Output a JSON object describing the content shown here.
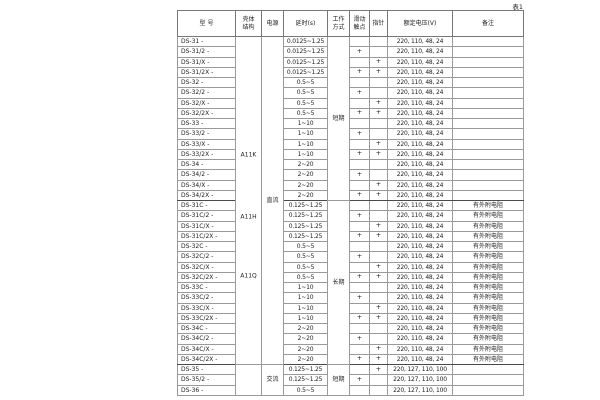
{
  "page": {
    "caption": "表1"
  },
  "table": {
    "headers": [
      "型 号",
      "壳体\n结构",
      "电源",
      "延时(s)",
      "工作\n方式",
      "滑动\n触点",
      "指针",
      "额定电压(V)",
      "备注"
    ],
    "shell_groups": [
      {
        "start": 1,
        "end": 32,
        "labels": [
          "A11K",
          "A11H",
          "A11Q"
        ]
      },
      {
        "start": 33,
        "end": 35,
        "labels": []
      }
    ],
    "power_groups": [
      {
        "start": 1,
        "end": 32,
        "label": "直流"
      },
      {
        "start": 33,
        "end": 35,
        "label": "交流"
      }
    ],
    "mode_groups": [
      {
        "start": 1,
        "end": 16,
        "label": "短期"
      },
      {
        "start": 17,
        "end": 32,
        "label": "长期"
      },
      {
        "start": 33,
        "end": 35,
        "label": "短期"
      }
    ],
    "rows": [
      {
        "model": "DS-31 -",
        "delay": "0.0125~1.25",
        "sliding_contact": "",
        "pointer": "",
        "voltage": "220, 110, 48, 24",
        "remark": ""
      },
      {
        "model": "DS-31/2 -",
        "delay": "0.0125~1.25",
        "sliding_contact": "+",
        "pointer": "",
        "voltage": "220, 110, 48, 24",
        "remark": ""
      },
      {
        "model": "DS-31/X -",
        "delay": "0.0125~1.25",
        "sliding_contact": "",
        "pointer": "+",
        "voltage": "220, 110, 48, 24",
        "remark": ""
      },
      {
        "model": "DS-31/2X -",
        "delay": "0.0125~1.25",
        "sliding_contact": "+",
        "pointer": "+",
        "voltage": "220, 110, 48, 24",
        "remark": ""
      },
      {
        "model": "DS-32 -",
        "delay": "0.5~5",
        "sliding_contact": "",
        "pointer": "",
        "voltage": "220, 110, 48, 24",
        "remark": ""
      },
      {
        "model": "DS-32/2 -",
        "delay": "0.5~5",
        "sliding_contact": "+",
        "pointer": "",
        "voltage": "220, 110, 48, 24",
        "remark": ""
      },
      {
        "model": "DS-32/X -",
        "delay": "0.5~5",
        "sliding_contact": "",
        "pointer": "+",
        "voltage": "220, 110, 48, 24",
        "remark": ""
      },
      {
        "model": "DS-32/2X -",
        "delay": "0.5~5",
        "sliding_contact": "+",
        "pointer": "+",
        "voltage": "220, 110, 48, 24",
        "remark": ""
      },
      {
        "model": "DS-33 -",
        "delay": "1~10",
        "sliding_contact": "",
        "pointer": "",
        "voltage": "220, 110, 48, 24",
        "remark": ""
      },
      {
        "model": "DS-33/2 -",
        "delay": "1~10",
        "sliding_contact": "+",
        "pointer": "",
        "voltage": "220, 110, 48, 24",
        "remark": ""
      },
      {
        "model": "DS-33/X -",
        "delay": "1~10",
        "sliding_contact": "",
        "pointer": "+",
        "voltage": "220, 110, 48, 24",
        "remark": ""
      },
      {
        "model": "DS-33/2X -",
        "delay": "1~10",
        "sliding_contact": "+",
        "pointer": "+",
        "voltage": "220, 110, 48, 24",
        "remark": ""
      },
      {
        "model": "DS-34 -",
        "delay": "2~20",
        "sliding_contact": "",
        "pointer": "",
        "voltage": "220, 110, 48, 24",
        "remark": ""
      },
      {
        "model": "DS-34/2 -",
        "delay": "2~20",
        "sliding_contact": "+",
        "pointer": "",
        "voltage": "220, 110, 48, 24",
        "remark": ""
      },
      {
        "model": "DS-34/X -",
        "delay": "2~20",
        "sliding_contact": "",
        "pointer": "+",
        "voltage": "220, 110, 48, 24",
        "remark": ""
      },
      {
        "model": "DS-34/2X -",
        "delay": "2~20",
        "sliding_contact": "+",
        "pointer": "+",
        "voltage": "220, 110, 48, 24",
        "remark": ""
      },
      {
        "model": "DS-31C -",
        "delay": "0.125~1.25",
        "sliding_contact": "",
        "pointer": "",
        "voltage": "220, 110, 48, 24",
        "remark": "有外附电阻"
      },
      {
        "model": "DS-31C/2 -",
        "delay": "0.125~1.25",
        "sliding_contact": "+",
        "pointer": "",
        "voltage": "220, 110, 48, 24",
        "remark": "有外附电阻"
      },
      {
        "model": "DS-31C/X -",
        "delay": "0.125~1.25",
        "sliding_contact": "",
        "pointer": "+",
        "voltage": "220, 110, 48, 24",
        "remark": "有外附电阻"
      },
      {
        "model": "DS-31C/2X -",
        "delay": "0.125~1.25",
        "sliding_contact": "+",
        "pointer": "+",
        "voltage": "220, 110, 48, 24",
        "remark": "有外附电阻"
      },
      {
        "model": "DS-32C -",
        "delay": "0.5~5",
        "sliding_contact": "",
        "pointer": "",
        "voltage": "220, 110, 48, 24",
        "remark": "有外附电阻"
      },
      {
        "model": "DS-32C/2 -",
        "delay": "0.5~5",
        "sliding_contact": "+",
        "pointer": "",
        "voltage": "220, 110, 48, 24",
        "remark": "有外附电阻"
      },
      {
        "model": "DS-32C/X -",
        "delay": "0.5~5",
        "sliding_contact": "",
        "pointer": "+",
        "voltage": "220, 110, 48, 24",
        "remark": "有外附电阻"
      },
      {
        "model": "DS-32C/2X -",
        "delay": "0.5~5",
        "sliding_contact": "+",
        "pointer": "+",
        "voltage": "220, 110, 48, 24",
        "remark": "有外附电阻"
      },
      {
        "model": "DS-33C -",
        "delay": "1~10",
        "sliding_contact": "",
        "pointer": "",
        "voltage": "220, 110, 48, 24",
        "remark": "有外附电阻"
      },
      {
        "model": "DS-33C/2 -",
        "delay": "1~10",
        "sliding_contact": "+",
        "pointer": "",
        "voltage": "220, 110, 48, 24",
        "remark": "有外附电阻"
      },
      {
        "model": "DS-33C/X -",
        "delay": "1~10",
        "sliding_contact": "",
        "pointer": "+",
        "voltage": "220, 110, 48, 24",
        "remark": "有外附电阻"
      },
      {
        "model": "DS-33C/2X -",
        "delay": "1~10",
        "sliding_contact": "+",
        "pointer": "+",
        "voltage": "220, 110, 48, 24",
        "remark": "有外附电阻"
      },
      {
        "model": "DS-34C -",
        "delay": "2~20",
        "sliding_contact": "",
        "pointer": "",
        "voltage": "220, 110, 48, 24",
        "remark": "有外附电阻"
      },
      {
        "model": "DS-34C/2 -",
        "delay": "2~20",
        "sliding_contact": "+",
        "pointer": "",
        "voltage": "220, 110, 48, 24",
        "remark": "有外附电阻"
      },
      {
        "model": "DS-34C/X -",
        "delay": "2~20",
        "sliding_contact": "",
        "pointer": "+",
        "voltage": "220, 110, 48, 24",
        "remark": "有外附电阻"
      },
      {
        "model": "DS-34C/2X -",
        "delay": "2~20",
        "sliding_contact": "+",
        "pointer": "+",
        "voltage": "220, 110, 48, 24",
        "remark": "有外附电阻"
      },
      {
        "model": "DS-35 -",
        "delay": "0.125~1.25",
        "sliding_contact": "",
        "pointer": "+",
        "voltage": "220, 127, 110, 100",
        "remark": ""
      },
      {
        "model": "DS-35/2 -",
        "delay": "0.125~1.25",
        "sliding_contact": "+",
        "pointer": "",
        "voltage": "220, 127, 110, 100",
        "remark": ""
      },
      {
        "model": "DS-36 -",
        "delay": "0.5~5",
        "sliding_contact": "",
        "pointer": "",
        "voltage": "220, 127, 110, 100",
        "remark": ""
      }
    ]
  }
}
